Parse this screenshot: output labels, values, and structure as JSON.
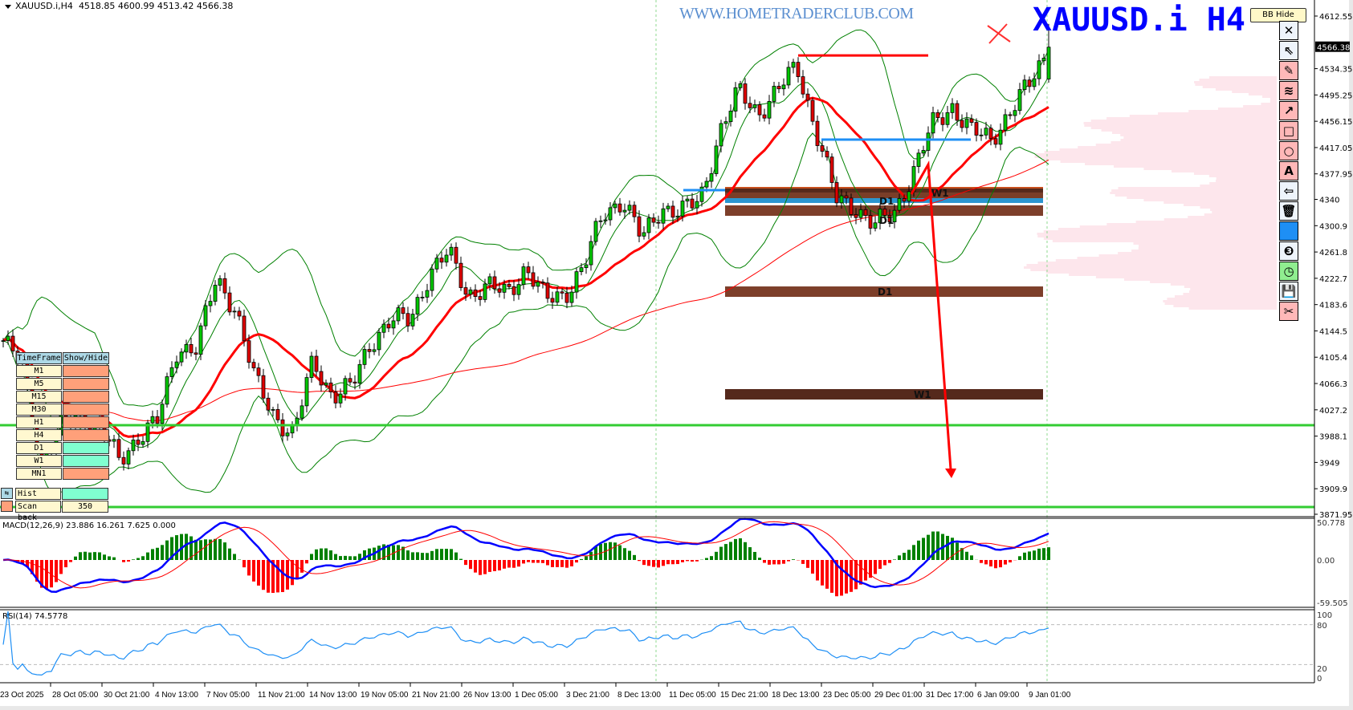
{
  "header": {
    "symbol": "XAUUSD.i,H4",
    "ohlc": "4518.85 4600.99 4513.42 4566.38"
  },
  "watermark": "WWW.HOMETRADERCLUB.COM",
  "big_title": "XAUUSD.i H4",
  "bb_hide_label": "BB Hide",
  "toolbar": [
    {
      "icon": "close-icon",
      "glyph": "✕",
      "style": "l"
    },
    {
      "icon": "cursor-icon",
      "glyph": "⇖",
      "style": "l"
    },
    {
      "icon": "pencil-icon",
      "glyph": "✎",
      "style": "p"
    },
    {
      "icon": "wave-lines-icon",
      "glyph": "≋",
      "style": "p"
    },
    {
      "icon": "arrow-icon",
      "glyph": "↗",
      "style": "p"
    },
    {
      "icon": "rectangle-icon",
      "glyph": "□",
      "style": "p"
    },
    {
      "icon": "circle-icon",
      "glyph": "○",
      "style": "p"
    },
    {
      "icon": "text-icon",
      "glyph": "A",
      "style": "p"
    },
    {
      "icon": "label-arrow-icon",
      "glyph": "⇦",
      "style": "l"
    },
    {
      "icon": "trash-icon",
      "glyph": "🗑",
      "style": "l"
    },
    {
      "icon": "color-swatch-icon",
      "glyph": "",
      "style": "b"
    },
    {
      "icon": "number-three-icon",
      "glyph": "❸",
      "style": "l"
    },
    {
      "icon": "clock-icon",
      "glyph": "◷",
      "style": "g"
    },
    {
      "icon": "save-icon",
      "glyph": "💾",
      "style": "l"
    },
    {
      "icon": "scissors-icon",
      "glyph": "✂",
      "style": "p"
    }
  ],
  "timeframe_panel": {
    "headers": [
      "TimeFrame",
      "Show/Hide"
    ],
    "rows": [
      {
        "tf": "M1",
        "on": false
      },
      {
        "tf": "M5",
        "on": false
      },
      {
        "tf": "M15",
        "on": false
      },
      {
        "tf": "M30",
        "on": false
      },
      {
        "tf": "H1",
        "on": false
      },
      {
        "tf": "H4",
        "on": false
      },
      {
        "tf": "D1",
        "on": true
      },
      {
        "tf": "W1",
        "on": true
      },
      {
        "tf": "MN1",
        "on": false
      }
    ],
    "hist_show": "Hist show",
    "scan_back_label": "Scan back",
    "scan_back_value": "350"
  },
  "macd_label": "MACD(12,26,9) 23.886 16.261 7.625 0.000",
  "rsi_label": "RSI(14) 74.5778",
  "chart_data": {
    "type": "candlestick",
    "symbol": "XAUUSD.i",
    "timeframe": "H4",
    "last_bar": {
      "open": 4518.85,
      "high": 4600.99,
      "low": 4513.42,
      "close": 4566.38
    },
    "close_path": [
      4130,
      4090,
      3950,
      4000,
      4020,
      4000,
      3950,
      3990,
      4010,
      4120,
      4120,
      4220,
      4180,
      4070,
      4020,
      3990,
      4100,
      4050,
      4060,
      4130,
      4160,
      4160,
      4230,
      4260,
      4200,
      4210,
      4200,
      4240,
      4190,
      4200,
      4240,
      4320,
      4340,
      4280,
      4330,
      4320,
      4340,
      4440,
      4500,
      4470,
      4500,
      4540,
      4440,
      4340,
      4330,
      4300,
      4320,
      4380,
      4450,
      4480,
      4440,
      4430,
      4470,
      4510,
      4566.38
    ],
    "price_ticks": [
      4612.55,
      4573.45,
      4534.35,
      4495.25,
      4456.15,
      4417.05,
      4377.95,
      4340.0,
      4300.9,
      4261.8,
      4222.7,
      4183.6,
      4144.5,
      4105.4,
      4066.3,
      4027.2,
      3988.1,
      3949.0,
      3909.9,
      3871.95
    ],
    "price_range": [
      3871.95,
      4612.55
    ],
    "current_price": "4566.38",
    "time_ticks": [
      "23 Oct 2025",
      "28 Oct 05:00",
      "30 Oct 21:00",
      "4 Nov 13:00",
      "7 Nov 05:00",
      "11 Nov 21:00",
      "14 Nov 13:00",
      "19 Nov 05:00",
      "21 Nov 21:00",
      "26 Nov 13:00",
      "1 Dec 05:00",
      "3 Dec 21:00",
      "8 Dec 13:00",
      "11 Dec 05:00",
      "15 Dec 21:00",
      "18 Dec 13:00",
      "23 Dec 05:00",
      "29 Dec 01:00",
      "31 Dec 17:00",
      "6 Jan 09:00",
      "9 Jan 01:00"
    ],
    "zones": [
      {
        "label": "W1",
        "top": 4357.3,
        "bottom": 4350.2,
        "color": "#56291b"
      },
      {
        "label": "D1",
        "top": 4350.2,
        "bottom": 4341.8,
        "color": "#7a3e28"
      },
      {
        "label": "",
        "top": 4341.8,
        "bottom": 4334.7,
        "color": "#2a96d0"
      },
      {
        "label": "D1",
        "top": 4331.1,
        "bottom": 4315.6,
        "color": "#7d3f2a"
      },
      {
        "label": "D1",
        "top": 4210.6,
        "bottom": 4195.1,
        "color": "#7d3f2a"
      },
      {
        "label": "W1",
        "top": 4058.0,
        "bottom": 4042.5,
        "color": "#55291c"
      }
    ],
    "horizontal_lines": [
      {
        "price": 4004.3,
        "color": "#33cc33"
      },
      {
        "price": 3882.7,
        "color": "#33cc33"
      }
    ],
    "resistance_line": {
      "price": 4554,
      "color": "#ff0000"
    },
    "support_lines": [
      {
        "price": 4428.9,
        "color": "#1e8ff5"
      },
      {
        "price": 4353.7,
        "color": "#1e8ff5"
      }
    ],
    "indicators": [
      "Bollinger Bands",
      "Moving Average",
      "MACD(12,26,9)",
      "RSI(14)"
    ],
    "macd_axis": [
      "50.778",
      "0.00",
      "-59.505"
    ],
    "rsi_axis": [
      "100",
      "80",
      "20",
      "0"
    ],
    "colors": {
      "bull": "#00c800",
      "bear": "#e00000",
      "bands": "#008000",
      "ma": "#ff0000",
      "macd": "#0000ff",
      "rsi": "#1e8ff5"
    }
  }
}
